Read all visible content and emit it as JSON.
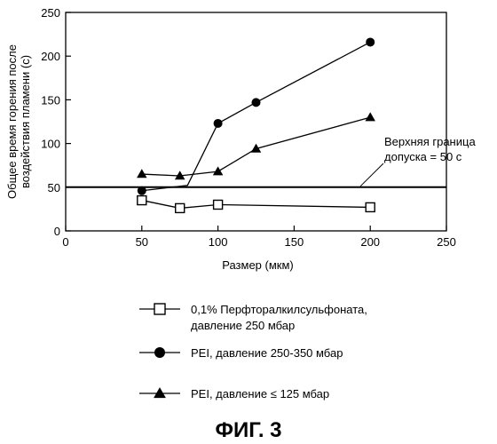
{
  "chart_data": {
    "type": "line",
    "xlabel": "Размер (мкм)",
    "ylabel_lines": [
      "Общее время горения после",
      "воздействия пламени (с)"
    ],
    "xlim": [
      0,
      250
    ],
    "ylim": [
      0,
      250
    ],
    "xticks": [
      0,
      50,
      100,
      150,
      200,
      250
    ],
    "yticks": [
      0,
      50,
      100,
      150,
      200,
      250
    ],
    "grid": false,
    "legend_position": "bottom",
    "series": [
      {
        "legend_lines": [
          "0,1% Перфторалкилсульфоната,",
          "давление 250 мбар"
        ],
        "marker": "open-square",
        "color": "#000000",
        "points": [
          [
            50,
            35
          ],
          [
            75,
            26
          ],
          [
            100,
            30
          ],
          [
            200,
            27
          ]
        ]
      },
      {
        "legend_lines": [
          "PEI, давление 250-350 мбар"
        ],
        "marker": "filled-circle",
        "color": "#000000",
        "points": [
          [
            50,
            46
          ],
          [
            80,
            52
          ],
          [
            100,
            123
          ],
          [
            125,
            147
          ],
          [
            200,
            216
          ]
        ]
      },
      {
        "legend_lines": [
          "PEI, давление ≤ 125 мбар"
        ],
        "marker": "filled-triangle",
        "color": "#000000",
        "points": [
          [
            50,
            65
          ],
          [
            75,
            63
          ],
          [
            100,
            68
          ],
          [
            125,
            94
          ],
          [
            200,
            130
          ]
        ]
      }
    ],
    "reference_line": {
      "y": 50,
      "label_lines": [
        "Верхняя граница",
        "допуска = 50 с"
      ]
    }
  },
  "figure_caption": "ФИГ. 3"
}
